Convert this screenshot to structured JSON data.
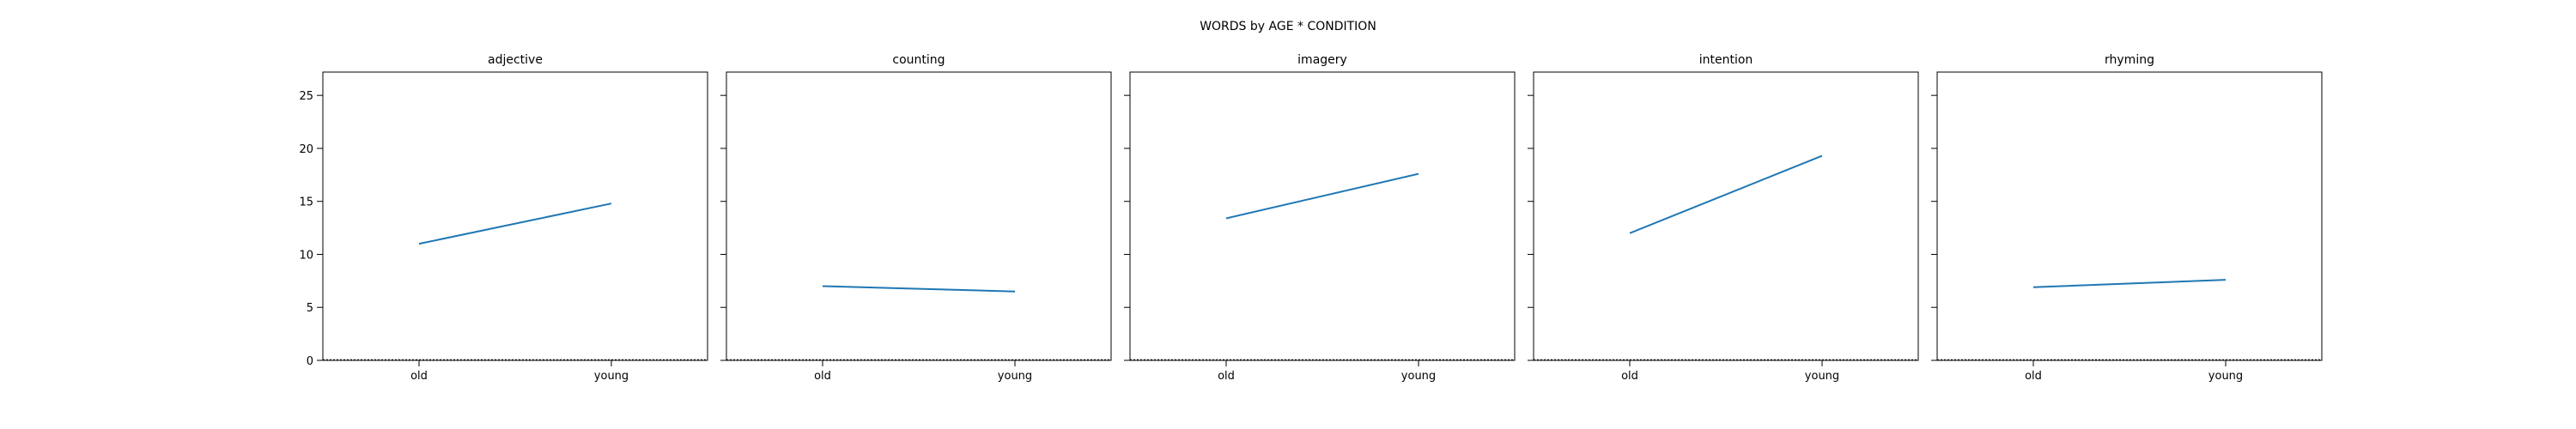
{
  "chart_data": {
    "type": "line",
    "title": "WORDS by AGE * CONDITION",
    "categories": [
      "old",
      "young"
    ],
    "ylim": [
      0,
      27.2
    ],
    "yticks": [
      0,
      5,
      10,
      15,
      20,
      25
    ],
    "colors": {
      "line": "#1f77b4",
      "axis": "#000000",
      "background": "#ffffff"
    },
    "panels": [
      {
        "title": "adjective",
        "values": [
          11.0,
          14.8
        ]
      },
      {
        "title": "counting",
        "values": [
          7.0,
          6.5
        ]
      },
      {
        "title": "imagery",
        "values": [
          13.4,
          17.6
        ]
      },
      {
        "title": "intention",
        "values": [
          12.0,
          19.3
        ]
      },
      {
        "title": "rhyming",
        "values": [
          6.9,
          7.6
        ]
      }
    ]
  }
}
